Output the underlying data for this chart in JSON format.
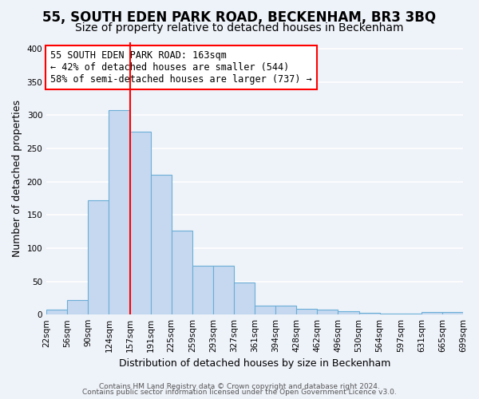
{
  "title": "55, SOUTH EDEN PARK ROAD, BECKENHAM, BR3 3BQ",
  "subtitle": "Size of property relative to detached houses in Beckenham",
  "xlabel": "Distribution of detached houses by size in Beckenham",
  "ylabel": "Number of detached properties",
  "bin_labels": [
    "22sqm",
    "56sqm",
    "90sqm",
    "124sqm",
    "157sqm",
    "191sqm",
    "225sqm",
    "259sqm",
    "293sqm",
    "327sqm",
    "361sqm",
    "394sqm",
    "428sqm",
    "462sqm",
    "496sqm",
    "530sqm",
    "564sqm",
    "597sqm",
    "631sqm",
    "665sqm",
    "699sqm"
  ],
  "bar_heights": [
    7,
    22,
    172,
    308,
    275,
    210,
    126,
    74,
    74,
    48,
    14,
    14,
    9,
    7,
    5,
    3,
    2,
    2,
    4,
    4
  ],
  "bar_color": "#c5d8f0",
  "bar_edge_color": "#6baed6",
  "vline_x": 4,
  "vline_color": "red",
  "annotation_text": "55 SOUTH EDEN PARK ROAD: 163sqm\n← 42% of detached houses are smaller (544)\n58% of semi-detached houses are larger (737) →",
  "annotation_box_color": "white",
  "annotation_box_edge": "red",
  "ylim": [
    0,
    410
  ],
  "yticks": [
    0,
    50,
    100,
    150,
    200,
    250,
    300,
    350,
    400
  ],
  "footer1": "Contains HM Land Registry data © Crown copyright and database right 2024.",
  "footer2": "Contains public sector information licensed under the Open Government Licence v3.0.",
  "bg_color": "#eef2f9",
  "grid_color": "white",
  "title_fontsize": 12,
  "subtitle_fontsize": 10,
  "axis_label_fontsize": 9,
  "tick_fontsize": 7.5,
  "annotation_fontsize": 8.5,
  "footer_fontsize": 6.5
}
